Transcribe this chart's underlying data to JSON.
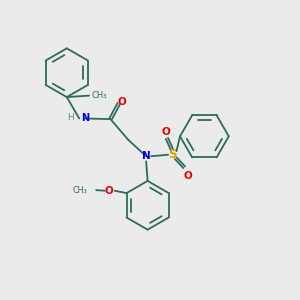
{
  "background_color": "#ebebeb",
  "bond_color": "#2d6b5e",
  "N_color": "#0000ee",
  "O_color": "#ee0000",
  "S_color": "#ccaa00",
  "H_color": "#5a8a84",
  "line_width": 1.3,
  "figsize": [
    3.0,
    3.0
  ],
  "dpi": 100,
  "xlim": [
    0,
    10
  ],
  "ylim": [
    0,
    10
  ]
}
